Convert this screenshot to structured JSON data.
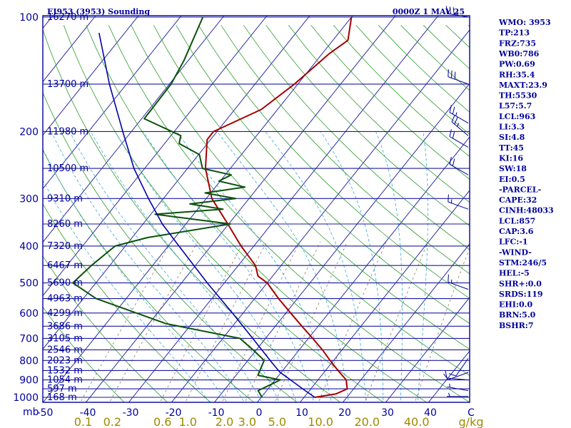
{
  "header": {
    "title": "EI953 (3953) Sounding",
    "time": "0000Z  1 MAY 25"
  },
  "indices": [
    "WMO: 3953",
    "TP:213",
    "FRZ:735",
    "WB0:786",
    "PW:0.69",
    "RH:35.4",
    "MAXT:23.9",
    "TH:5530",
    "L57:5.7",
    "LCL:963",
    "LI:3.3",
    "SI:4.8",
    "TT:45",
    "KI:16",
    "SW:18",
    "EI:0.5",
    "-PARCEL-",
    "CAPE:32",
    "CINH:48033",
    "LCL:857",
    "CAP:3.6",
    "LFC:-1",
    "-WIND-",
    "STM:246/5",
    "HEL:-5",
    "SHR+:0.0",
    "SRDS:119",
    "EHI:0.0",
    "BRN:5.0",
    "BSHR:7"
  ],
  "colors": {
    "frame": "#00009c",
    "isobar": "#1a1aa0",
    "isotherm": "#1a1aa0",
    "dry_adiabat": "#2e9c2e",
    "moist_adiabat": "#3aa8d8",
    "mixing_ratio": "#8a7a5a",
    "temperature": "#a50000",
    "dewpoint": "#0b520b",
    "parcel": "#0000aa",
    "mixing_ratio_labels": "#a08a00"
  },
  "chart_data": {
    "type": "line",
    "title": "EI953 (3953) Sounding",
    "subtitle": "0000Z  1 MAY 25",
    "x_unit": "C",
    "y_unit": "mb",
    "y_scale": "log",
    "ylim": [
      1000,
      100
    ],
    "xlim_at_bottom": [
      -50,
      50
    ],
    "pressure_ticks": [
      100,
      200,
      300,
      400,
      500,
      600,
      700,
      800,
      900,
      1000
    ],
    "pressure_tick_labels": [
      "100",
      "200",
      "300",
      "400",
      "500",
      "600",
      "700",
      "800",
      "900",
      "1000"
    ],
    "y_axis_label": "mb",
    "temperature_ticks": [
      -50,
      -40,
      -30,
      -20,
      -10,
      0,
      10,
      20,
      30,
      40
    ],
    "temperature_tick_labels": [
      "-50",
      "-40",
      "-30",
      "-20",
      "-10",
      "0",
      "10",
      "20",
      "30",
      "40"
    ],
    "x_axis_label": "C",
    "height_levels": [
      {
        "p": 100,
        "label": "16270 m"
      },
      {
        "p": 150,
        "label": "13700 m"
      },
      {
        "p": 200,
        "label": "11980 m"
      },
      {
        "p": 250,
        "label": "10500 m"
      },
      {
        "p": 300,
        "label": "9310 m"
      },
      {
        "p": 350,
        "label": "8260 m"
      },
      {
        "p": 400,
        "label": "7320 m"
      },
      {
        "p": 450,
        "label": "6467 m"
      },
      {
        "p": 500,
        "label": "5690 m"
      },
      {
        "p": 550,
        "label": "4963 m"
      },
      {
        "p": 600,
        "label": "4299 m"
      },
      {
        "p": 650,
        "label": "3686 m"
      },
      {
        "p": 700,
        "label": "3105 m"
      },
      {
        "p": 750,
        "label": "2546 m"
      },
      {
        "p": 800,
        "label": "2023 m"
      },
      {
        "p": 850,
        "label": "1532 m"
      },
      {
        "p": 900,
        "label": "1054 m"
      },
      {
        "p": 950,
        "label": "597 m"
      },
      {
        "p": 1000,
        "label": "168 m"
      }
    ],
    "mixing_ratio_labels": [
      "0.1",
      "0.2",
      "0.6",
      "1.0",
      "2.0",
      "3.0",
      "5.0",
      "10.0",
      "20.0",
      "40.0",
      "g/kg"
    ],
    "mixing_ratio_values": [
      0.1,
      0.2,
      0.6,
      1.0,
      2.0,
      3.0,
      5.0,
      10.0,
      20.0,
      40.0
    ],
    "series": [
      {
        "name": "",
        "role": "temperature",
        "points": [
          {
            "p": 1000,
            "t": 12.5
          },
          {
            "p": 980,
            "t": 16.8
          },
          {
            "p": 950,
            "t": 18.5
          },
          {
            "p": 900,
            "t": 16.6
          },
          {
            "p": 850,
            "t": 12.9
          },
          {
            "p": 800,
            "t": 9.2
          },
          {
            "p": 750,
            "t": 5.4
          },
          {
            "p": 700,
            "t": 1.0
          },
          {
            "p": 650,
            "t": -3.8
          },
          {
            "p": 600,
            "t": -8.9
          },
          {
            "p": 550,
            "t": -14.4
          },
          {
            "p": 500,
            "t": -20.0
          },
          {
            "p": 480,
            "t": -23.4
          },
          {
            "p": 450,
            "t": -26.0
          },
          {
            "p": 400,
            "t": -33.0
          },
          {
            "p": 350,
            "t": -40.2
          },
          {
            "p": 300,
            "t": -48.7
          },
          {
            "p": 250,
            "t": -55.8
          },
          {
            "p": 210,
            "t": -60.8
          },
          {
            "p": 200,
            "t": -60.8
          },
          {
            "p": 175,
            "t": -53.8
          },
          {
            "p": 150,
            "t": -50.8
          },
          {
            "p": 125,
            "t": -48.4
          },
          {
            "p": 115,
            "t": -46.5
          },
          {
            "p": 100,
            "t": -50.0
          }
        ]
      },
      {
        "name": "",
        "role": "dewpoint",
        "points": [
          {
            "p": 1000,
            "t": 0.2
          },
          {
            "p": 960,
            "t": -2.0
          },
          {
            "p": 900,
            "t": 1.2
          },
          {
            "p": 875,
            "t": -4.9
          },
          {
            "p": 800,
            "t": -6.2
          },
          {
            "p": 750,
            "t": -10.8
          },
          {
            "p": 700,
            "t": -16.0
          },
          {
            "p": 640,
            "t": -36.0
          },
          {
            "p": 550,
            "t": -57.0
          },
          {
            "p": 500,
            "t": -65.4
          },
          {
            "p": 450,
            "t": -64.3
          },
          {
            "p": 400,
            "t": -62.4
          },
          {
            "p": 380,
            "t": -56.4
          },
          {
            "p": 350,
            "t": -39.6
          },
          {
            "p": 330,
            "t": -59.0
          },
          {
            "p": 320,
            "t": -44.1
          },
          {
            "p": 310,
            "t": -52.8
          },
          {
            "p": 300,
            "t": -43.1
          },
          {
            "p": 290,
            "t": -51.3
          },
          {
            "p": 280,
            "t": -43.1
          },
          {
            "p": 270,
            "t": -50.3
          },
          {
            "p": 260,
            "t": -48.6
          },
          {
            "p": 250,
            "t": -56.5
          },
          {
            "p": 230,
            "t": -59.8
          },
          {
            "p": 215,
            "t": -66.6
          },
          {
            "p": 205,
            "t": -67.7
          },
          {
            "p": 185,
            "t": -79.4
          },
          {
            "p": 150,
            "t": -79.6
          },
          {
            "p": 130,
            "t": -81.0
          },
          {
            "p": 100,
            "t": -84.7
          }
        ]
      },
      {
        "name": "",
        "role": "parcel",
        "points": [
          {
            "p": 1000,
            "t": 12.5
          },
          {
            "p": 950,
            "t": 8.1
          },
          {
            "p": 900,
            "t": 3.6
          },
          {
            "p": 857,
            "t": -0.5
          },
          {
            "p": 800,
            "t": -4.8
          },
          {
            "p": 700,
            "t": -13.0
          },
          {
            "p": 600,
            "t": -22.5
          },
          {
            "p": 500,
            "t": -34.0
          },
          {
            "p": 400,
            "t": -47.5
          },
          {
            "p": 350,
            "t": -55.5
          },
          {
            "p": 300,
            "t": -63.5
          },
          {
            "p": 250,
            "t": -72.5
          },
          {
            "p": 200,
            "t": -82.0
          },
          {
            "p": 150,
            "t": -94.0
          },
          {
            "p": 110,
            "t": -106.0
          }
        ]
      }
    ],
    "wind_barbs": [
      {
        "p": 995,
        "dir": 270,
        "spd": 5
      },
      {
        "p": 960,
        "dir": 280,
        "spd": 5
      },
      {
        "p": 900,
        "dir": 275,
        "spd": 10
      },
      {
        "p": 860,
        "dir": 250,
        "spd": 10
      },
      {
        "p": 790,
        "dir": 215,
        "spd": 10
      },
      {
        "p": 520,
        "dir": 290,
        "spd": 15
      },
      {
        "p": 320,
        "dir": 290,
        "spd": 15
      },
      {
        "p": 260,
        "dir": 300,
        "spd": 20
      },
      {
        "p": 220,
        "dir": 300,
        "spd": 20
      },
      {
        "p": 205,
        "dir": 310,
        "spd": 25
      },
      {
        "p": 190,
        "dir": 300,
        "spd": 25
      },
      {
        "p": 150,
        "dir": 290,
        "spd": 30
      },
      {
        "p": 100,
        "dir": 280,
        "spd": 35
      }
    ],
    "grid": true
  }
}
